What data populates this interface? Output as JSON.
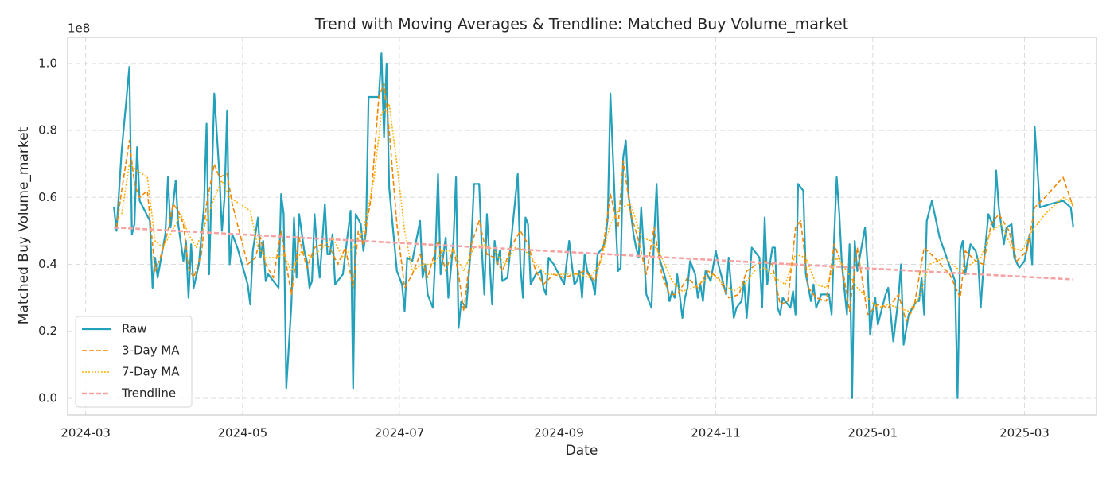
{
  "chart_data": {
    "type": "line",
    "title": "Trend with Moving Averages & Trendline: Matched Buy Volume_market",
    "xlabel": "Date",
    "ylabel": "Matched Buy Volume_market",
    "y_offset_label": "1e8",
    "xlim": [
      -7,
      393
    ],
    "xticks": [
      {
        "value": 0,
        "label": "2024-03"
      },
      {
        "value": 61,
        "label": "2024-05"
      },
      {
        "value": 122,
        "label": "2024-07"
      },
      {
        "value": 184,
        "label": "2024-09"
      },
      {
        "value": 245,
        "label": "2024-11"
      },
      {
        "value": 306,
        "label": "2025-01"
      },
      {
        "value": 365,
        "label": "2025-03"
      }
    ],
    "ylim": [
      -0.05,
      1.078
    ],
    "yticks": [
      {
        "value": 0,
        "label": "0.0"
      },
      0.2,
      0.4,
      0.6,
      0.8,
      {
        "value": 1,
        "label": "1.0"
      }
    ],
    "grid": true,
    "legend": "lower left",
    "x": [
      11,
      12,
      14,
      17,
      18,
      19,
      20,
      21,
      25,
      26,
      27,
      28,
      31,
      32,
      33,
      35,
      36,
      38,
      39,
      40,
      41,
      42,
      44,
      46,
      47,
      48,
      50,
      52,
      53,
      54,
      55,
      56,
      57,
      59,
      63,
      64,
      65,
      67,
      68,
      69,
      70,
      71,
      73,
      75,
      76,
      77,
      78,
      80,
      81,
      82,
      83,
      85,
      86,
      87,
      88,
      89,
      90,
      91,
      93,
      94,
      95,
      96,
      97,
      99,
      100,
      103,
      104,
      105,
      107,
      108,
      109,
      110,
      113,
      114,
      115,
      116,
      117,
      118,
      121,
      123,
      124,
      125,
      127,
      130,
      131,
      132,
      133,
      135,
      136,
      137,
      138,
      140,
      141,
      143,
      144,
      145,
      146,
      148,
      150,
      151,
      153,
      154,
      155,
      156,
      157,
      158,
      159,
      160,
      161,
      162,
      164,
      168,
      169,
      170,
      171,
      172,
      173,
      175,
      177,
      178,
      179,
      180,
      182,
      184,
      186,
      188,
      189,
      190,
      191,
      192,
      193,
      194,
      195,
      197,
      198,
      199,
      201,
      202,
      203,
      204,
      206,
      207,
      208,
      209,
      210,
      211,
      213,
      214,
      215,
      216,
      218,
      219,
      220,
      221,
      222,
      223,
      225,
      226,
      227,
      228,
      229,
      230,
      232,
      233,
      234,
      235,
      237,
      238,
      239,
      240,
      241,
      243,
      245,
      246,
      247,
      249,
      250,
      252,
      253,
      255,
      256,
      257,
      259,
      260,
      262,
      263,
      264,
      265,
      266,
      267,
      268,
      269,
      270,
      271,
      273,
      274,
      275,
      276,
      277,
      279,
      280,
      281,
      282,
      283,
      284,
      286,
      287,
      289,
      290,
      291,
      292,
      293,
      294,
      296,
      297,
      298,
      299,
      300,
      303,
      304,
      305,
      306,
      307,
      308,
      310,
      311,
      312,
      314,
      316,
      317,
      318,
      320,
      323,
      324,
      325,
      326,
      327,
      329,
      332,
      338,
      339,
      340,
      341,
      342,
      344,
      346,
      347,
      348,
      349,
      351,
      352,
      353,
      354,
      355,
      357,
      358,
      360,
      361,
      363,
      365,
      366,
      367,
      368,
      369,
      371,
      375,
      380,
      383,
      384
    ],
    "series": [
      {
        "name": "Raw",
        "color": "#23a0ba",
        "linestyle": "solid",
        "width": 2.2,
        "values": [
          0.57,
          0.5,
          0.74,
          0.99,
          0.49,
          0.52,
          0.75,
          0.59,
          0.53,
          0.33,
          0.42,
          0.36,
          0.49,
          0.66,
          0.51,
          0.65,
          0.52,
          0.41,
          0.47,
          0.3,
          0.46,
          0.33,
          0.4,
          0.57,
          0.82,
          0.37,
          0.91,
          0.67,
          0.5,
          0.6,
          0.86,
          0.4,
          0.49,
          0.45,
          0.34,
          0.28,
          0.44,
          0.54,
          0.42,
          0.47,
          0.35,
          0.37,
          0.35,
          0.33,
          0.61,
          0.55,
          0.03,
          0.28,
          0.54,
          0.36,
          0.55,
          0.44,
          0.41,
          0.33,
          0.35,
          0.55,
          0.44,
          0.36,
          0.58,
          0.43,
          0.43,
          0.49,
          0.34,
          0.36,
          0.37,
          0.56,
          0.03,
          0.55,
          0.52,
          0.44,
          0.5,
          0.9,
          0.9,
          0.9,
          1.03,
          0.78,
          1.0,
          0.63,
          0.38,
          0.34,
          0.26,
          0.42,
          0.41,
          0.53,
          0.36,
          0.4,
          0.31,
          0.27,
          0.43,
          0.67,
          0.37,
          0.48,
          0.3,
          0.47,
          0.66,
          0.21,
          0.29,
          0.27,
          0.47,
          0.64,
          0.64,
          0.45,
          0.31,
          0.55,
          0.42,
          0.28,
          0.47,
          0.4,
          0.44,
          0.35,
          0.36,
          0.67,
          0.4,
          0.3,
          0.54,
          0.52,
          0.34,
          0.37,
          0.38,
          0.33,
          0.31,
          0.42,
          0.4,
          0.37,
          0.34,
          0.47,
          0.4,
          0.34,
          0.35,
          0.38,
          0.3,
          0.43,
          0.38,
          0.35,
          0.31,
          0.43,
          0.45,
          0.47,
          0.54,
          0.91,
          0.54,
          0.38,
          0.39,
          0.72,
          0.77,
          0.61,
          0.49,
          0.45,
          0.42,
          0.57,
          0.31,
          0.29,
          0.27,
          0.48,
          0.64,
          0.42,
          0.37,
          0.34,
          0.29,
          0.32,
          0.3,
          0.37,
          0.24,
          0.3,
          0.33,
          0.41,
          0.37,
          0.3,
          0.34,
          0.29,
          0.38,
          0.35,
          0.44,
          0.4,
          0.37,
          0.31,
          0.42,
          0.24,
          0.27,
          0.29,
          0.35,
          0.24,
          0.45,
          0.44,
          0.42,
          0.27,
          0.54,
          0.34,
          0.4,
          0.45,
          0.45,
          0.27,
          0.25,
          0.3,
          0.28,
          0.27,
          0.32,
          0.25,
          0.64,
          0.62,
          0.37,
          0.33,
          0.29,
          0.34,
          0.27,
          0.31,
          0.31,
          0.31,
          0.25,
          0.48,
          0.66,
          0.55,
          0.4,
          0.25,
          0.46,
          0.0,
          0.47,
          0.38,
          0.51,
          0.4,
          0.19,
          0.26,
          0.3,
          0.22,
          0.28,
          0.31,
          0.33,
          0.17,
          0.3,
          0.4,
          0.16,
          0.25,
          0.29,
          0.29,
          0.36,
          0.25,
          0.53,
          0.59,
          0.48,
          0.35,
          0.0,
          0.44,
          0.47,
          0.37,
          0.46,
          0.44,
          0.41,
          0.27,
          0.39,
          0.55,
          0.53,
          0.51,
          0.68,
          0.57,
          0.46,
          0.51,
          0.52,
          0.42,
          0.39,
          0.41,
          0.45,
          0.49,
          0.4,
          0.81,
          0.57,
          0.58,
          0.59,
          0.57,
          0.51
        ]
      },
      {
        "name": "3-Day MA",
        "color": "#f28500",
        "linestyle": "dashed",
        "width": 1.6,
        "x": [
          12,
          14,
          17,
          19,
          21,
          24,
          27,
          29,
          32,
          34,
          36,
          38,
          40,
          42,
          45,
          47,
          50,
          52,
          55,
          57,
          60,
          63,
          66,
          68,
          70,
          73,
          76,
          78,
          80,
          83,
          86,
          89,
          92,
          95,
          98,
          101,
          104,
          106,
          108,
          111,
          114,
          116,
          118,
          121,
          124,
          127,
          130,
          133,
          137,
          140,
          143,
          145,
          147,
          150,
          153,
          156,
          159,
          162,
          166,
          169,
          172,
          175,
          178,
          182,
          186,
          190,
          194,
          198,
          201,
          204,
          207,
          209,
          212,
          215,
          218,
          221,
          224,
          227,
          230,
          234,
          238,
          242,
          246,
          250,
          254,
          257,
          261,
          264,
          267,
          270,
          273,
          276,
          278,
          281,
          284,
          288,
          291,
          294,
          297,
          300,
          304,
          308,
          312,
          316,
          319,
          322,
          326,
          330,
          336,
          340,
          342,
          346,
          349,
          352,
          355,
          359,
          362,
          366,
          369,
          373,
          380,
          384
        ],
        "values": [
          0.51,
          0.62,
          0.77,
          0.64,
          0.6,
          0.62,
          0.38,
          0.42,
          0.5,
          0.58,
          0.56,
          0.52,
          0.39,
          0.36,
          0.43,
          0.58,
          0.7,
          0.66,
          0.67,
          0.58,
          0.49,
          0.4,
          0.42,
          0.48,
          0.4,
          0.36,
          0.5,
          0.4,
          0.31,
          0.48,
          0.39,
          0.45,
          0.46,
          0.45,
          0.4,
          0.45,
          0.33,
          0.5,
          0.46,
          0.6,
          0.9,
          0.94,
          0.8,
          0.52,
          0.33,
          0.37,
          0.43,
          0.36,
          0.47,
          0.38,
          0.45,
          0.37,
          0.26,
          0.46,
          0.53,
          0.43,
          0.42,
          0.38,
          0.46,
          0.5,
          0.46,
          0.38,
          0.34,
          0.37,
          0.36,
          0.37,
          0.38,
          0.35,
          0.44,
          0.61,
          0.51,
          0.71,
          0.55,
          0.47,
          0.37,
          0.51,
          0.37,
          0.31,
          0.31,
          0.36,
          0.33,
          0.38,
          0.36,
          0.3,
          0.31,
          0.38,
          0.4,
          0.41,
          0.4,
          0.28,
          0.29,
          0.51,
          0.53,
          0.33,
          0.3,
          0.29,
          0.46,
          0.4,
          0.26,
          0.45,
          0.25,
          0.28,
          0.27,
          0.31,
          0.23,
          0.27,
          0.45,
          0.42,
          0.37,
          0.3,
          0.44,
          0.41,
          0.4,
          0.52,
          0.55,
          0.5,
          0.41,
          0.44,
          0.57,
          0.6,
          0.66,
          0.57
        ]
      },
      {
        "name": "7-Day MA",
        "color": "#ffb000",
        "linestyle": "dotted",
        "width": 1.6,
        "x": [
          14,
          17,
          20,
          24,
          27,
          30,
          33,
          37,
          40,
          43,
          47,
          50,
          53,
          56,
          60,
          64,
          67,
          70,
          74,
          77,
          80,
          84,
          88,
          92,
          96,
          100,
          104,
          108,
          112,
          115,
          118,
          121,
          124,
          127,
          131,
          135,
          139,
          143,
          147,
          151,
          155,
          159,
          163,
          167,
          171,
          175,
          179,
          184,
          188,
          192,
          196,
          200,
          204,
          208,
          212,
          216,
          220,
          224,
          228,
          232,
          236,
          240,
          244,
          248,
          252,
          256,
          260,
          264,
          268,
          272,
          276,
          280,
          284,
          288,
          292,
          296,
          300,
          304,
          308,
          312,
          316,
          320,
          324,
          328,
          334,
          340,
          344,
          348,
          352,
          356,
          360,
          364,
          368,
          373,
          380,
          384
        ],
        "values": [
          0.55,
          0.7,
          0.68,
          0.66,
          0.47,
          0.45,
          0.49,
          0.55,
          0.49,
          0.45,
          0.53,
          0.6,
          0.65,
          0.6,
          0.58,
          0.56,
          0.45,
          0.42,
          0.42,
          0.43,
          0.38,
          0.44,
          0.42,
          0.45,
          0.48,
          0.42,
          0.45,
          0.5,
          0.65,
          0.85,
          0.88,
          0.7,
          0.5,
          0.38,
          0.4,
          0.4,
          0.44,
          0.44,
          0.38,
          0.45,
          0.46,
          0.44,
          0.4,
          0.45,
          0.44,
          0.4,
          0.37,
          0.37,
          0.37,
          0.37,
          0.36,
          0.4,
          0.52,
          0.57,
          0.58,
          0.48,
          0.47,
          0.42,
          0.35,
          0.32,
          0.33,
          0.35,
          0.37,
          0.34,
          0.32,
          0.34,
          0.38,
          0.39,
          0.36,
          0.34,
          0.43,
          0.42,
          0.34,
          0.33,
          0.42,
          0.38,
          0.33,
          0.3,
          0.27,
          0.28,
          0.27,
          0.26,
          0.3,
          0.4,
          0.42,
          0.38,
          0.4,
          0.42,
          0.5,
          0.52,
          0.45,
          0.44,
          0.5,
          0.55,
          0.6,
          0.58
        ]
      },
      {
        "name": "Trendline",
        "color": "#f7a3a3",
        "linestyle": "dashed",
        "width": 2.6,
        "x": [
          11,
          384
        ],
        "values": [
          0.51,
          0.355
        ]
      }
    ]
  }
}
